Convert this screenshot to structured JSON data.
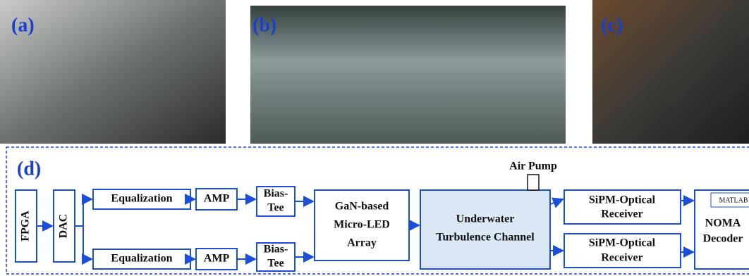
{
  "panels": {
    "a": "(a)",
    "b": "(b)",
    "c": "(c)",
    "d": "(d)"
  },
  "nodes": {
    "fpga": "FPGA",
    "dac": "DAC",
    "eq_top": "Equalization",
    "eq_bottom": "Equalization",
    "amp_top": "AMP",
    "amp_bottom": "AMP",
    "bias_top": [
      "Bias-",
      "Tee"
    ],
    "bias_bottom": [
      "Bias-",
      "Tee"
    ],
    "gan": [
      "GaN-based",
      "Micro-LED",
      "Array"
    ],
    "channel": [
      "Underwater",
      "Turbulence Channel"
    ],
    "air_pump": "Air Pump",
    "sipm_top": [
      "SiPM-Optical",
      "Receiver"
    ],
    "sipm_bottom": [
      "SiPM-Optical",
      "Receiver"
    ],
    "matlab": "MATLAB",
    "noma": [
      "NOMA",
      "Decoder"
    ]
  }
}
